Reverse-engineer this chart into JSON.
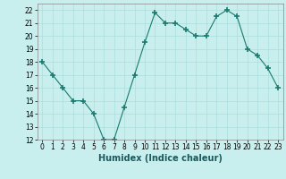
{
  "x": [
    0,
    1,
    2,
    3,
    4,
    5,
    6,
    7,
    8,
    9,
    10,
    11,
    12,
    13,
    14,
    15,
    16,
    17,
    18,
    19,
    20,
    21,
    22,
    23
  ],
  "y": [
    18,
    17,
    16,
    15,
    15,
    14,
    12,
    12,
    14.5,
    17,
    19.5,
    21.8,
    21,
    21,
    20.5,
    20,
    20,
    21.5,
    22,
    21.5,
    19,
    18.5,
    17.5,
    16
  ],
  "line_color": "#1a7a6e",
  "marker": "+",
  "marker_size": 4,
  "marker_lw": 1.2,
  "bg_color": "#c8eeee",
  "grid_color": "#aadddd",
  "xlabel": "Humidex (Indice chaleur)",
  "ylim": [
    12,
    22.5
  ],
  "xlim": [
    -0.5,
    23.5
  ],
  "yticks": [
    12,
    13,
    14,
    15,
    16,
    17,
    18,
    19,
    20,
    21,
    22
  ],
  "xticks": [
    0,
    1,
    2,
    3,
    4,
    5,
    6,
    7,
    8,
    9,
    10,
    11,
    12,
    13,
    14,
    15,
    16,
    17,
    18,
    19,
    20,
    21,
    22,
    23
  ],
  "tick_fontsize": 5.5,
  "xlabel_fontsize": 7,
  "line_width": 0.8
}
